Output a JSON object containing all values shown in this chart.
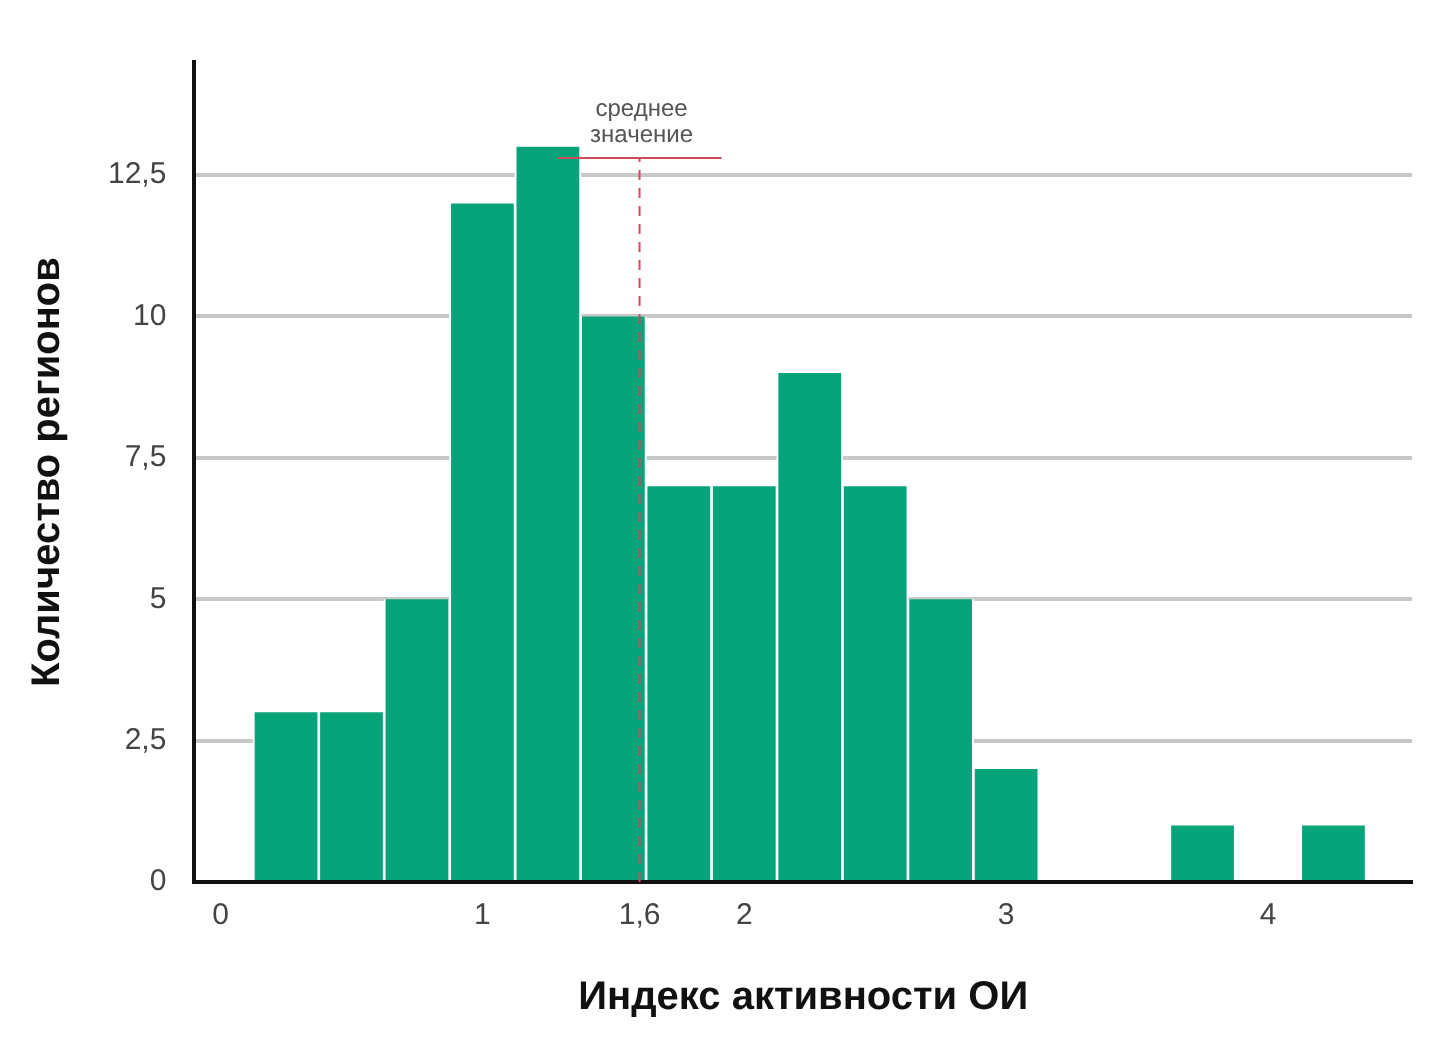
{
  "chart_data": {
    "type": "histogram",
    "xlabel": "Индекс активности ОИ",
    "ylabel": "Количество регионов",
    "bins": [
      0.125,
      0.375,
      0.625,
      0.875,
      1.125,
      1.375,
      1.625,
      1.875,
      2.125,
      2.375,
      2.625,
      2.875,
      3.125,
      3.375,
      3.625,
      3.875,
      4.125,
      4.375
    ],
    "values": [
      3,
      3,
      5,
      12,
      13,
      10,
      7,
      7,
      9,
      7,
      5,
      2,
      0,
      0,
      1,
      0,
      1
    ],
    "color": "#07a47a",
    "xlim": [
      -0.1,
      4.55
    ],
    "xticks": [
      0,
      1,
      {
        "value": 1.6,
        "label": "1,6"
      },
      2,
      3,
      4
    ],
    "ylim": [
      0,
      14.5
    ],
    "yticks": [
      0,
      {
        "value": 2.5,
        "label": "2,5"
      },
      5,
      {
        "value": 7.5,
        "label": "7,5"
      },
      10,
      {
        "value": 12.5,
        "label": "12,5"
      }
    ],
    "grid": "y",
    "legend": false,
    "ref_lines": [
      {
        "axis": "x",
        "value": 1.6,
        "label": "среднее значение",
        "color": "#d04a5e",
        "line_style": "dashed"
      }
    ]
  }
}
